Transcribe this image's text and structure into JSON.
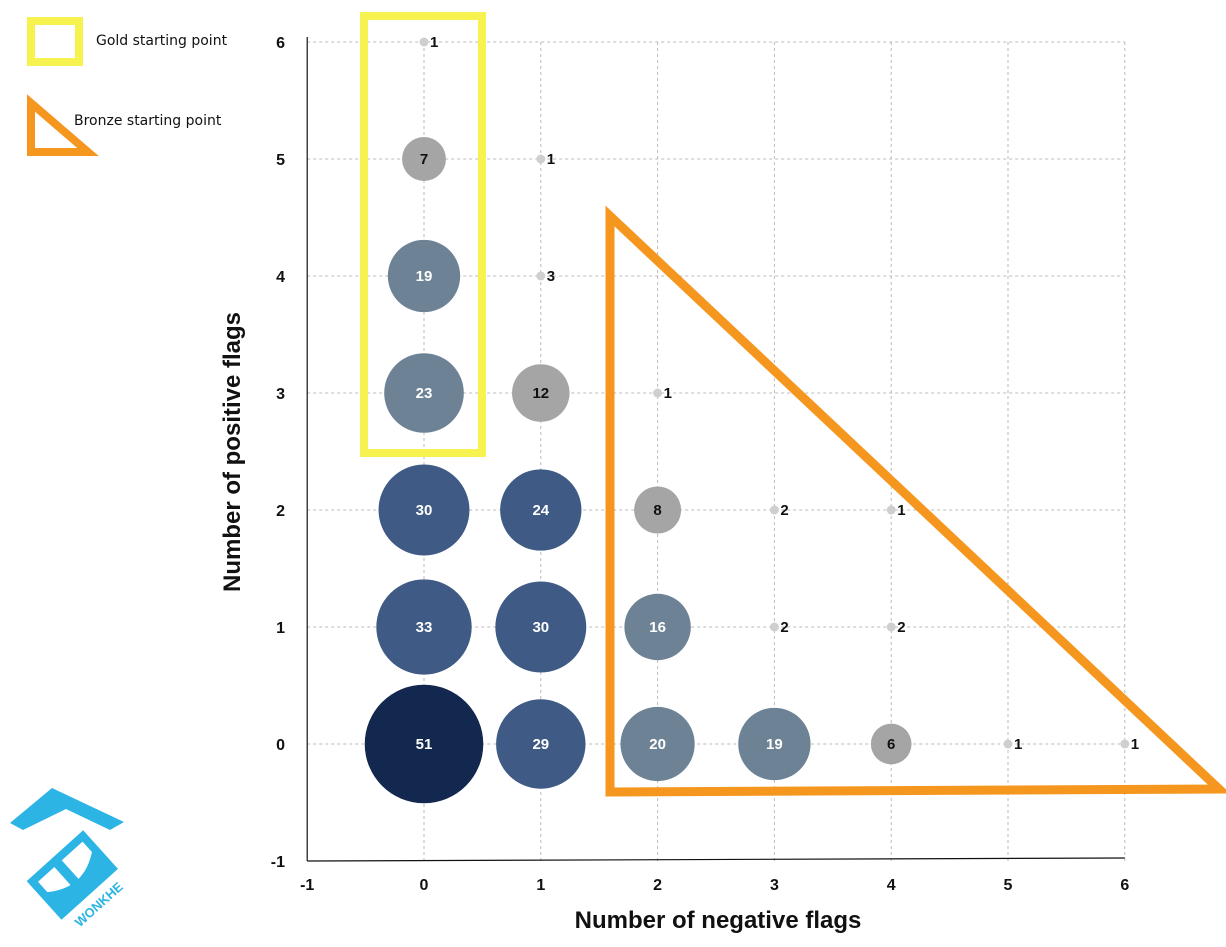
{
  "chart_data": {
    "type": "scatter",
    "title": "",
    "xlabel": "Number of negative flags",
    "ylabel": "Number of positive flags",
    "xlim": [
      -1,
      6
    ],
    "ylim": [
      -1,
      6
    ],
    "x_ticks": [
      "-1",
      "0",
      "1",
      "2",
      "3",
      "4",
      "5",
      "6"
    ],
    "y_ticks": [
      "-1",
      "0",
      "1",
      "2",
      "3",
      "4",
      "5",
      "6"
    ],
    "grid": "horizontal and vertical dashed",
    "encoding": "bubble size = count",
    "points": [
      {
        "x": 0,
        "y": 6,
        "count": 1
      },
      {
        "x": 0,
        "y": 5,
        "count": 7
      },
      {
        "x": 1,
        "y": 5,
        "count": 1
      },
      {
        "x": 0,
        "y": 4,
        "count": 19
      },
      {
        "x": 1,
        "y": 4,
        "count": 3
      },
      {
        "x": 0,
        "y": 3,
        "count": 23
      },
      {
        "x": 1,
        "y": 3,
        "count": 12
      },
      {
        "x": 2,
        "y": 3,
        "count": 1
      },
      {
        "x": 0,
        "y": 2,
        "count": 30
      },
      {
        "x": 1,
        "y": 2,
        "count": 24
      },
      {
        "x": 2,
        "y": 2,
        "count": 8
      },
      {
        "x": 3,
        "y": 2,
        "count": 2
      },
      {
        "x": 4,
        "y": 2,
        "count": 1
      },
      {
        "x": 0,
        "y": 1,
        "count": 33
      },
      {
        "x": 1,
        "y": 1,
        "count": 30
      },
      {
        "x": 2,
        "y": 1,
        "count": 16
      },
      {
        "x": 3,
        "y": 1,
        "count": 2
      },
      {
        "x": 4,
        "y": 1,
        "count": 2
      },
      {
        "x": 0,
        "y": 0,
        "count": 51
      },
      {
        "x": 1,
        "y": 0,
        "count": 29
      },
      {
        "x": 2,
        "y": 0,
        "count": 20
      },
      {
        "x": 3,
        "y": 0,
        "count": 19
      },
      {
        "x": 4,
        "y": 0,
        "count": 6
      },
      {
        "x": 5,
        "y": 0,
        "count": 1
      },
      {
        "x": 6,
        "y": 0,
        "count": 1
      }
    ],
    "legend": [
      {
        "label": "Gold starting point",
        "shape": "square",
        "color": "#f6f250"
      },
      {
        "label": "Bronze starting point",
        "shape": "triangle",
        "color": "#f5961e"
      }
    ],
    "legend_position": "top-left",
    "colors": {
      "large": "#13284f",
      "medium": "#3f5a85",
      "small": "#6e8296",
      "tiny": "#a5a5a5",
      "dot": "#cfcfcf",
      "gold": "#f6f250",
      "bronze": "#f5961e"
    }
  },
  "logo": {
    "text": "WONKHE",
    "color": "#2bb4e4",
    "icon": "wonkhe-logo-icon"
  }
}
